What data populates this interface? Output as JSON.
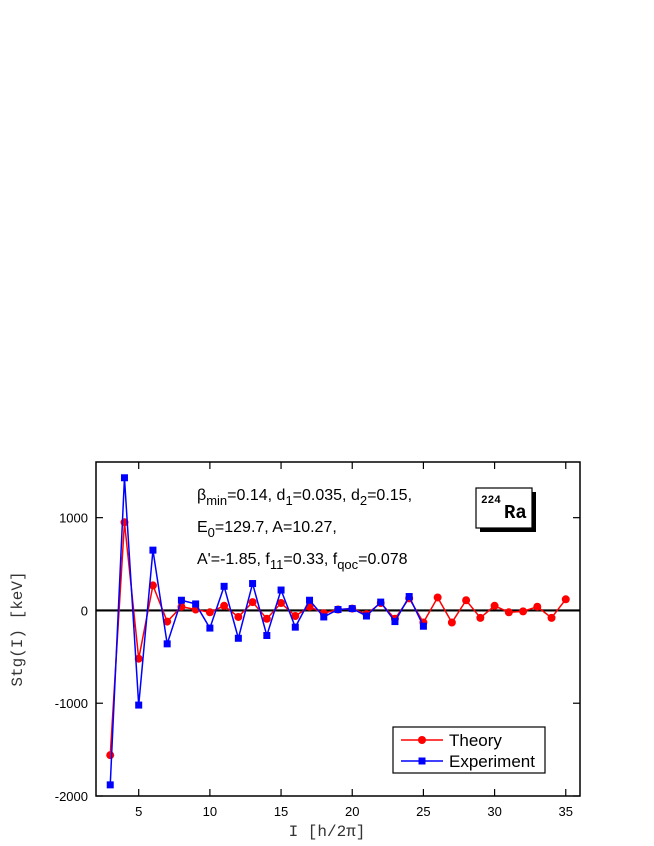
{
  "chart_data": {
    "type": "line",
    "xlabel": "I  [h/2π]",
    "ylabel": "Stg(I)  [keV]",
    "annotations": [
      [
        "β",
        "min",
        "=0.14,  d",
        "1",
        "=0.035, d",
        "2",
        "=0.15,"
      ],
      [
        "E",
        "0",
        "=129.7,  A=10.27,"
      ],
      [
        "A'=-1.85, f",
        "11",
        "=0.33, f",
        "qoc",
        "=0.078"
      ]
    ],
    "nucleus": {
      "mass": "224",
      "symbol": "Ra"
    },
    "xlim": [
      2,
      36
    ],
    "xticks": [
      5,
      10,
      15,
      20,
      25,
      30,
      35
    ],
    "ylim": [
      -2000,
      1600
    ],
    "yticks": [
      -2000,
      -1000,
      0,
      1000
    ],
    "legend": "lower right",
    "series": [
      {
        "name": "Theory",
        "color": "#ff0000",
        "marker": "circle",
        "x": [
          3,
          4,
          5,
          6,
          7,
          8,
          9,
          10,
          11,
          12,
          13,
          14,
          15,
          16,
          17,
          18,
          19,
          20,
          21,
          22,
          23,
          24,
          25,
          26,
          27,
          28,
          29,
          30,
          31,
          32,
          33,
          34,
          35
        ],
        "values": [
          -1560,
          950,
          -520,
          270,
          -120,
          40,
          10,
          -20,
          50,
          -70,
          90,
          -90,
          80,
          -60,
          40,
          -30,
          10,
          20,
          -40,
          80,
          -90,
          130,
          -130,
          140,
          -130,
          110,
          -80,
          50,
          -20,
          -10,
          40,
          -80,
          120
        ]
      },
      {
        "name": "Experiment",
        "color": "#0000ff",
        "marker": "square",
        "x": [
          3,
          4,
          5,
          6,
          7,
          8,
          9,
          10,
          11,
          12,
          13,
          14,
          15,
          16,
          17,
          18,
          19,
          20,
          21,
          22,
          23,
          24,
          25
        ],
        "values": [
          -1880,
          1430,
          -1020,
          650,
          -360,
          110,
          70,
          -190,
          260,
          -300,
          290,
          -270,
          220,
          -180,
          110,
          -70,
          10,
          20,
          -60,
          90,
          -120,
          150,
          -170
        ]
      }
    ]
  }
}
